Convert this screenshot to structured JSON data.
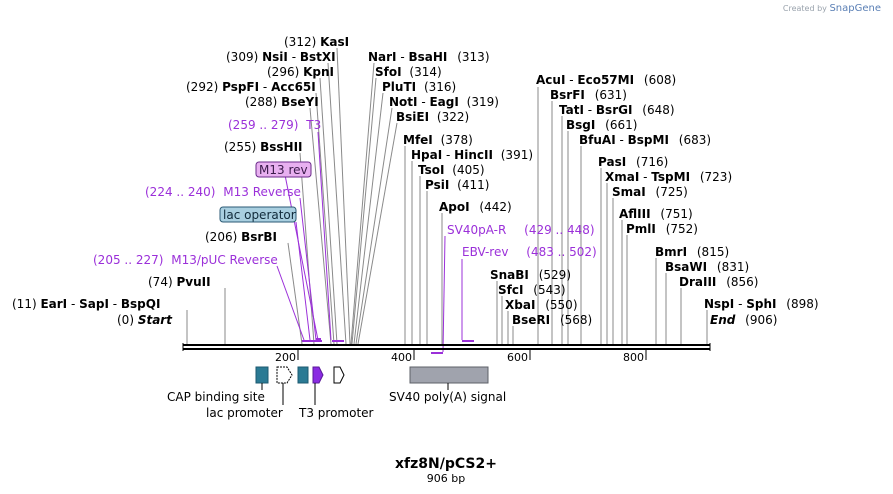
{
  "credit": {
    "text": "Created by",
    "brand": "SnapGene"
  },
  "plasmid": {
    "name": "xfz8N/pCS2+",
    "length_label": "906 bp",
    "length": 906
  },
  "ruler": {
    "ticks": [
      "200",
      "400",
      "600",
      "800"
    ]
  },
  "colors": {
    "enzyme": "#000000",
    "primer": "#9b30d9",
    "primer_box_fill": "#e8b0f0",
    "operator_box_fill": "#a9cfe0",
    "cap_site": "#2b7a94",
    "t3_feature": "#8a2be2",
    "polya": "#a0a3ad",
    "leader_line": "#8a8a8a"
  },
  "sites": [
    {
      "pos": "(312)",
      "name": "KasI"
    },
    {
      "pos": "(309)",
      "name": "NsiI",
      "alt": "BstXI"
    },
    {
      "pos": "(296)",
      "name": "KpnI"
    },
    {
      "pos": "(292)",
      "name": "PspFI",
      "alt": "Acc65I"
    },
    {
      "pos": "(288)",
      "name": "BseYI"
    },
    {
      "pos": "(255)",
      "name": "BssHII"
    },
    {
      "pos": "(206)",
      "name": "BsrBI"
    },
    {
      "pos": "(74)",
      "name": "PvuII"
    },
    {
      "pos": "(11)",
      "name": "EarI",
      "alt": "SapI",
      "alt2": "BspQI"
    },
    {
      "pos": "(0)",
      "name": "Start"
    },
    {
      "pos": "(313)",
      "name": "NarI",
      "alt": "BsaHI"
    },
    {
      "pos": "(314)",
      "name": "SfoI"
    },
    {
      "pos": "(316)",
      "name": "PluTI"
    },
    {
      "pos": "(319)",
      "name": "NotI",
      "alt": "EagI"
    },
    {
      "pos": "(322)",
      "name": "BsiEI"
    },
    {
      "pos": "(378)",
      "name": "MfeI"
    },
    {
      "pos": "(391)",
      "name": "HpaI",
      "alt": "HincII"
    },
    {
      "pos": "(405)",
      "name": "TsoI"
    },
    {
      "pos": "(411)",
      "name": "PsiI"
    },
    {
      "pos": "(442)",
      "name": "ApoI"
    },
    {
      "pos": "(608)",
      "name": "AcuI",
      "alt": "Eco57MI"
    },
    {
      "pos": "(631)",
      "name": "BsrFI"
    },
    {
      "pos": "(648)",
      "name": "TatI",
      "alt": "BsrGI"
    },
    {
      "pos": "(661)",
      "name": "BsgI"
    },
    {
      "pos": "(683)",
      "name": "BfuAI",
      "alt": "BspMI"
    },
    {
      "pos": "(716)",
      "name": "PasI"
    },
    {
      "pos": "(723)",
      "name": "XmaI",
      "alt": "TspMI"
    },
    {
      "pos": "(725)",
      "name": "SmaI"
    },
    {
      "pos": "(751)",
      "name": "AflIII"
    },
    {
      "pos": "(752)",
      "name": "PmlI"
    },
    {
      "pos": "(815)",
      "name": "BmrI"
    },
    {
      "pos": "(831)",
      "name": "BsaWI"
    },
    {
      "pos": "(856)",
      "name": "DraIII"
    },
    {
      "pos": "(898)",
      "name": "NspI",
      "alt": "SphI"
    },
    {
      "pos": "(906)",
      "name": "End"
    },
    {
      "pos": "(529)",
      "name": "SnaBI"
    },
    {
      "pos": "(543)",
      "name": "SfcI"
    },
    {
      "pos": "(550)",
      "name": "XbaI"
    },
    {
      "pos": "(568)",
      "name": "BseRI"
    }
  ],
  "primers": [
    {
      "range": "(259 .. 279)",
      "name": "T3"
    },
    {
      "name": "M13 rev"
    },
    {
      "range": "(224 .. 240)",
      "name": "M13 Reverse"
    },
    {
      "name": "lac operator"
    },
    {
      "range": "(205 .. 227)",
      "name": "M13/pUC Reverse"
    },
    {
      "name": "SV40pA-R",
      "range": "(429 .. 448)"
    },
    {
      "name": "EBV-rev",
      "range": "(483 .. 502)"
    }
  ],
  "features": [
    {
      "name": "CAP binding site"
    },
    {
      "name": "lac promoter"
    },
    {
      "name": "T3 promoter"
    },
    {
      "name": "SV40 poly(A) signal"
    }
  ]
}
